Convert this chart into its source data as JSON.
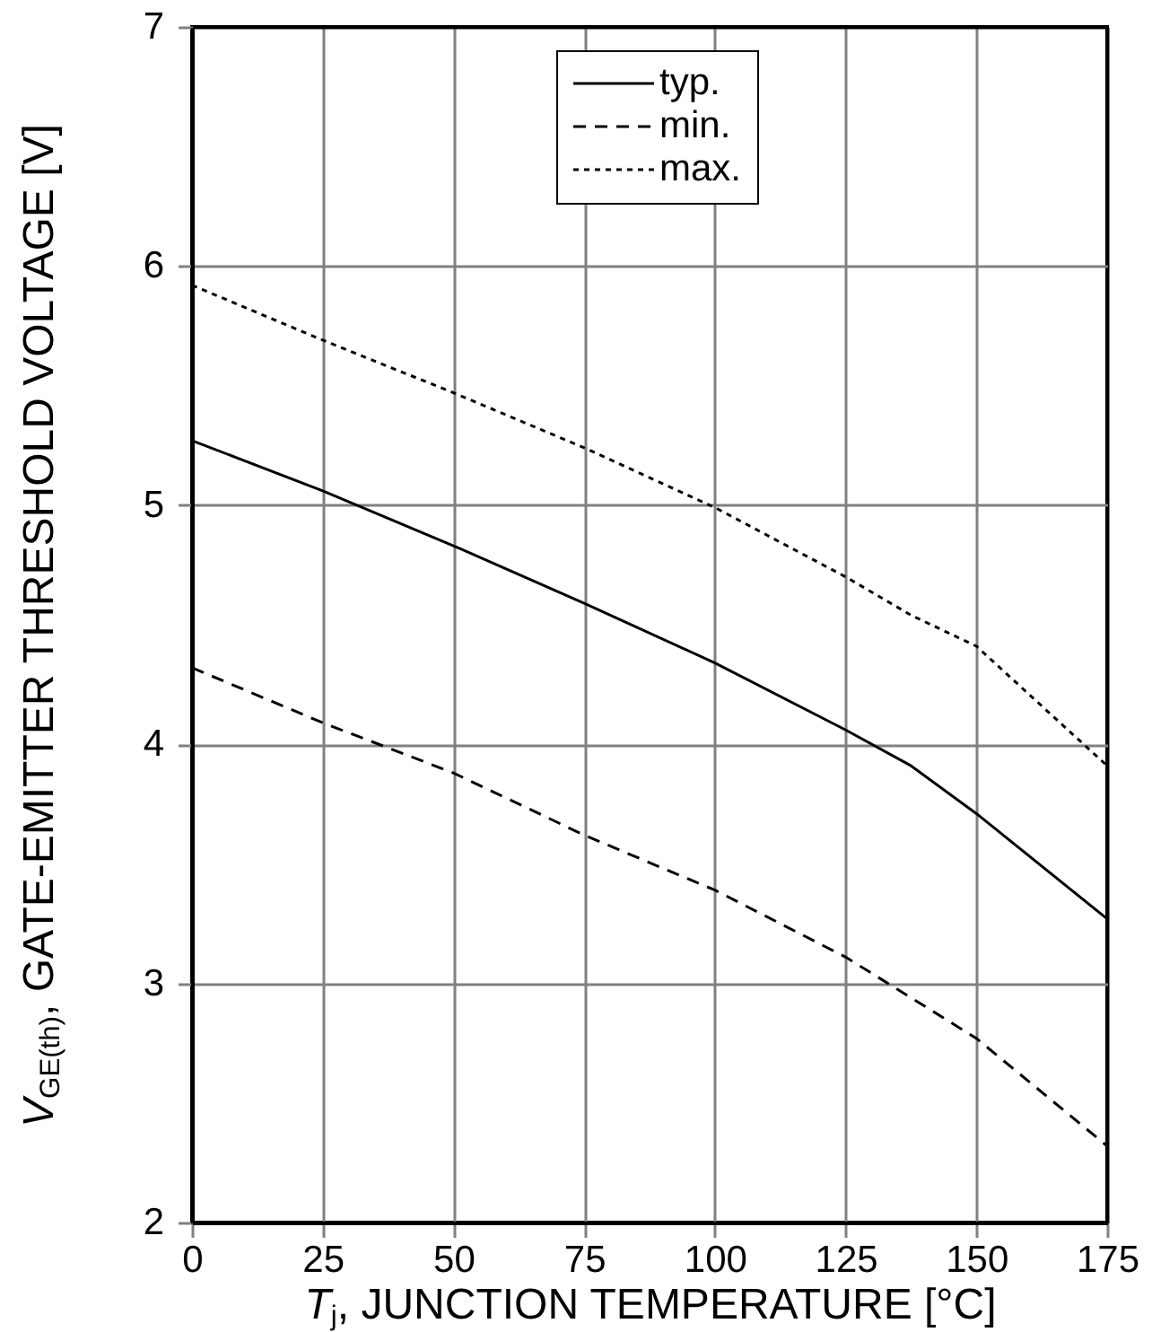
{
  "chart_data": {
    "type": "line",
    "xlabel": "T$_{j}$, JUNCTION TEMPERATURE [°C]",
    "ylabel": "V$_{GE(th)}$, GATE-EMITTER THRESHOLD VOLTAGE [V]",
    "x": [
      0,
      25,
      50,
      75,
      100,
      125,
      137.5,
      150,
      175
    ],
    "series": [
      {
        "name": "typ.",
        "color": "#000000",
        "line_style": "solid",
        "values": [
          5.27,
          5.06,
          4.83,
          4.59,
          4.34,
          4.06,
          3.91,
          3.71,
          3.27
        ]
      },
      {
        "name": "min.",
        "color": "#000000",
        "line_style": "dashed",
        "values": [
          4.32,
          4.09,
          3.88,
          3.62,
          3.39,
          3.11,
          2.94,
          2.77,
          2.32
        ]
      },
      {
        "name": "max.",
        "color": "#000000",
        "line_style": "dotted",
        "values": [
          5.92,
          5.69,
          5.47,
          5.24,
          4.99,
          4.7,
          4.54,
          4.41,
          3.91
        ]
      }
    ],
    "xlim": [
      0,
      175
    ],
    "xticks": [
      0,
      25,
      50,
      75,
      100,
      125,
      150,
      175
    ],
    "ylim": [
      2,
      7
    ],
    "yticks": [
      2,
      3,
      4,
      5,
      6,
      7
    ],
    "grid": true,
    "legend": "top"
  }
}
